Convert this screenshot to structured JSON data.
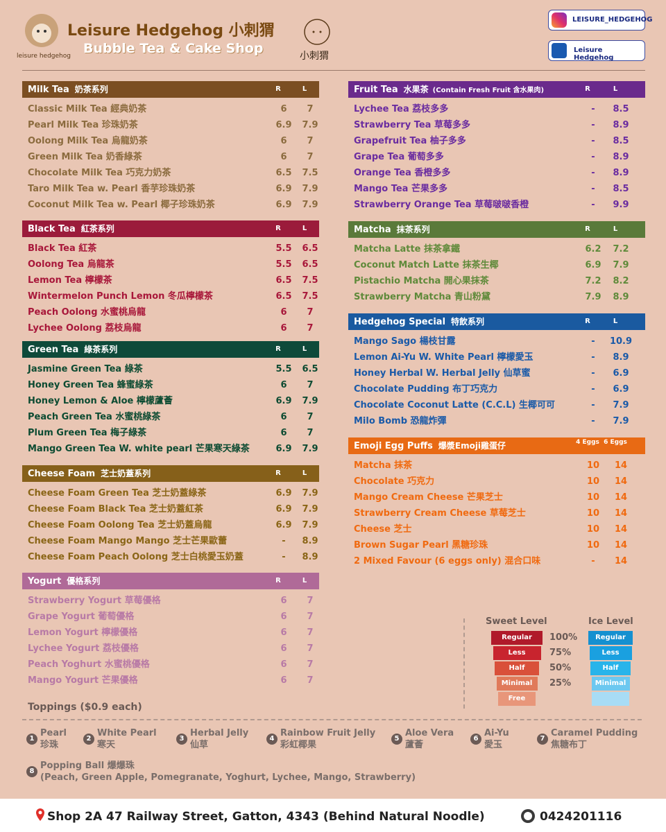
{
  "header": {
    "brand": "Leisure Hedgehog",
    "brand_cn": "小刺猬",
    "subtitle": "Bubble Tea & Cake Shop",
    "logo_caption": "leisure hedgehog",
    "logo_cn": "小刺猬",
    "instagram": "LEISURE_HEDGEHOG",
    "facebook": "Leisure Hedgehog"
  },
  "left_sections": [
    {
      "title": "Milk Tea",
      "title_cn": "奶茶系列",
      "col_r": "R",
      "col_l": "L",
      "header_color": "#7b4e22",
      "text_color": "#8b6b3e",
      "items": [
        {
          "name": "Classic Milk Tea 經典奶茶",
          "r": "6",
          "l": "7"
        },
        {
          "name": "Pearl Milk Tea 珍珠奶茶",
          "r": "6.9",
          "l": "7.9"
        },
        {
          "name": "Oolong Milk Tea 烏龍奶茶",
          "r": "6",
          "l": "7"
        },
        {
          "name": "Green Milk Tea 奶香綠茶",
          "r": "6",
          "l": "7"
        },
        {
          "name": "Chocolate Milk Tea 巧克力奶茶",
          "r": "6.5",
          "l": "7.5"
        },
        {
          "name": "Taro Milk Tea w. Pearl 香芋珍珠奶茶",
          "r": "6.9",
          "l": "7.9"
        },
        {
          "name": "Coconut Milk Tea w. Pearl 椰子珍珠奶茶",
          "r": "6.9",
          "l": "7.9"
        }
      ]
    },
    {
      "title": "Black Tea",
      "title_cn": "紅茶系列",
      "col_r": "R",
      "col_l": "L",
      "header_color": "#9b1b3b",
      "text_color": "#a8173a",
      "items": [
        {
          "name": "Black Tea 紅茶",
          "r": "5.5",
          "l": "6.5"
        },
        {
          "name": "Oolong Tea 烏龍茶",
          "r": "5.5",
          "l": "6.5"
        },
        {
          "name": "Lemon Tea 檸檬茶",
          "r": "6.5",
          "l": "7.5"
        },
        {
          "name": "Wintermelon Punch Lemon 冬瓜檸檬茶",
          "r": "6.5",
          "l": "7.5"
        },
        {
          "name": "Peach Oolong 水蜜桃烏龍",
          "r": "6",
          "l": "7"
        },
        {
          "name": "Lychee Oolong 荔枝烏龍",
          "r": "6",
          "l": "7"
        }
      ]
    },
    {
      "title": "Green Tea",
      "title_cn": "綠茶系列",
      "col_r": "R",
      "col_l": "L",
      "header_color": "#0e4a3a",
      "text_color": "#0d4b32",
      "items": [
        {
          "name": "Jasmine Green Tea 綠茶",
          "r": "5.5",
          "l": "6.5"
        },
        {
          "name": "Honey Green Tea 蜂蜜綠茶",
          "r": "6",
          "l": "7"
        },
        {
          "name": "Honey Lemon & Aloe 檸檬蘆薈",
          "r": "6.9",
          "l": "7.9"
        },
        {
          "name": "Peach Green Tea 水蜜桃綠茶",
          "r": "6",
          "l": "7"
        },
        {
          "name": "Plum Green Tea 梅子綠茶",
          "r": "6",
          "l": "7"
        },
        {
          "name": "Mango Green Tea W. white pearl 芒果寒天綠茶",
          "r": "6.9",
          "l": "7.9"
        }
      ]
    },
    {
      "title": "Cheese Foam",
      "title_cn": "芝士奶蓋系列",
      "col_r": "R",
      "col_l": "L",
      "header_color": "#86601a",
      "text_color": "#8a6516",
      "items": [
        {
          "name": "Cheese Foam Green Tea 芝士奶蓋綠茶",
          "r": "6.9",
          "l": "7.9"
        },
        {
          "name": "Cheese Foam Black Tea 芝士奶蓋紅茶",
          "r": "6.9",
          "l": "7.9"
        },
        {
          "name": "Cheese Foam Oolong Tea 芝士奶蓋烏龍",
          "r": "6.9",
          "l": "7.9"
        },
        {
          "name": "Cheese Foam Mango Mango 芝士芒果歐蕾",
          "r": "-",
          "l": "8.9"
        },
        {
          "name": "Cheese Foam Peach Oolong 芝士白桃愛玉奶蓋",
          "r": "-",
          "l": "8.9"
        }
      ]
    },
    {
      "title": "Yogurt",
      "title_cn": "優格系列",
      "col_r": "R",
      "col_l": "L",
      "header_color": "#b06a98",
      "text_color": "#b87aa6",
      "items": [
        {
          "name": "Strawberry Yogurt 草莓優格",
          "r": "6",
          "l": "7"
        },
        {
          "name": "Grape Yogurt 葡萄優格",
          "r": "6",
          "l": "7"
        },
        {
          "name": "Lemon Yogurt 檸檬優格",
          "r": "6",
          "l": "7"
        },
        {
          "name": "Lychee Yogurt 荔枝優格",
          "r": "6",
          "l": "7"
        },
        {
          "name": "Peach Yoghurt 水蜜桃優格",
          "r": "6",
          "l": "7"
        },
        {
          "name": "Mango Yogurt 芒果優格",
          "r": "6",
          "l": "7"
        }
      ]
    }
  ],
  "right_sections": [
    {
      "title": "Fruit Tea",
      "title_cn": "水果茶",
      "note": "(Contain Fresh Fruit 含水果肉)",
      "col_r": "R",
      "col_l": "L",
      "header_color": "#6a2a8c",
      "text_color": "#6a2ca0",
      "items": [
        {
          "name": "Lychee Tea 荔枝多多",
          "r": "-",
          "l": "8.5"
        },
        {
          "name": "Strawberry Tea 草莓多多",
          "r": "-",
          "l": "8.9"
        },
        {
          "name": "Grapefruit Tea 柚子多多",
          "r": "-",
          "l": "8.5"
        },
        {
          "name": "Grape Tea 葡萄多多",
          "r": "-",
          "l": "8.9"
        },
        {
          "name": "Orange Tea 香橙多多",
          "r": "-",
          "l": "8.9"
        },
        {
          "name": "Mango Tea 芒果多多",
          "r": "-",
          "l": "8.5"
        },
        {
          "name": "Strawberry Orange Tea 草莓啵啵香橙",
          "r": "-",
          "l": "9.9"
        }
      ]
    },
    {
      "title": "Matcha",
      "title_cn": "抹茶系列",
      "col_r": "R",
      "col_l": "L",
      "header_color": "#5a7a3a",
      "text_color": "#5f8a3a",
      "items": [
        {
          "name": "Matcha Latte 抹茶拿鐵",
          "r": "6.2",
          "l": "7.2"
        },
        {
          "name": "Coconut Match Latte 抹茶生椰",
          "r": "6.9",
          "l": "7.9"
        },
        {
          "name": "Pistachio Matcha 開心果抹茶",
          "r": "7.2",
          "l": "8.2"
        },
        {
          "name": "Strawberry Matcha 青山粉黛",
          "r": "7.9",
          "l": "8.9"
        }
      ]
    },
    {
      "title": "Hedgehog Special",
      "title_cn": "特飲系列",
      "col_r": "R",
      "col_l": "L",
      "header_color": "#1a5aa0",
      "text_color": "#1a5aa8",
      "items": [
        {
          "name": "Mango Sago 楊枝甘露",
          "r": "-",
          "l": "10.9"
        },
        {
          "name": "Lemon Ai-Yu W. White Pearl 檸檬愛玉",
          "r": "-",
          "l": "8.9"
        },
        {
          "name": "Honey Herbal W. Herbal Jelly 仙草蜜",
          "r": "-",
          "l": "6.9"
        },
        {
          "name": "Chocolate Pudding 布丁巧克力",
          "r": "-",
          "l": "6.9"
        },
        {
          "name": "Chocolate Coconut Latte (C.C.L) 生椰可可",
          "r": "-",
          "l": "7.9"
        },
        {
          "name": "Milo Bomb 恐龍炸彈",
          "r": "-",
          "l": "7.9"
        }
      ]
    },
    {
      "title": "Emoji Egg Puffs",
      "title_cn": "爆漿Emoji雞蛋仔",
      "col_r": "4 Eggs",
      "col_l": "6 Eggs",
      "header_color": "#e86a14",
      "text_color": "#f06a10",
      "items": [
        {
          "name": "Matcha 抹茶",
          "r": "10",
          "l": "14"
        },
        {
          "name": "Chocolate 巧克力",
          "r": "10",
          "l": "14"
        },
        {
          "name": "Mango Cream Cheese 芒果芝士",
          "r": "10",
          "l": "14"
        },
        {
          "name": "Strawberry Cream Cheese 草莓芝士",
          "r": "10",
          "l": "14"
        },
        {
          "name": "Cheese 芝士",
          "r": "10",
          "l": "14"
        },
        {
          "name": "Brown Sugar Pearl 黑糖珍珠",
          "r": "10",
          "l": "14"
        },
        {
          "name": "2 Mixed Favour (6 eggs only) 混合口味",
          "r": "-",
          "l": "14"
        }
      ]
    }
  ],
  "levels": {
    "sweet_title": "Sweet Level",
    "sweet": [
      "Regular",
      "Less",
      "Half",
      "Minimal",
      "Free"
    ],
    "percents": [
      "100%",
      "75%",
      "50%",
      "25%"
    ],
    "ice_title": "Ice Level",
    "ice": [
      "Regular",
      "Less",
      "Half",
      "Minimal"
    ]
  },
  "toppings": {
    "title": "Toppings ($0.9 each)",
    "items": [
      {
        "num": "1",
        "name": "Pearl",
        "cn": "珍珠"
      },
      {
        "num": "2",
        "name": "White Pearl",
        "cn": "寒天"
      },
      {
        "num": "3",
        "name": "Herbal Jelly",
        "cn": "仙草"
      },
      {
        "num": "4",
        "name": "Rainbow Fruit Jelly",
        "cn": "彩虹椰果"
      },
      {
        "num": "5",
        "name": "Aloe Vera",
        "cn": "蘆薈"
      },
      {
        "num": "6",
        "name": "Ai-Yu",
        "cn": "愛玉"
      },
      {
        "num": "7",
        "name": "Caramel Pudding",
        "cn": "焦糖布丁"
      },
      {
        "num": "8",
        "name": "Popping Ball 爆爆珠",
        "cn": "(Peach, Green Apple, Pomegranate, Yoghurt, Lychee, Mango, Strawberry)"
      }
    ]
  },
  "footer": {
    "address": "Shop 2A 47 Railway Street, Gatton, 4343 (Behind Natural Noodle)",
    "phone": "0424201116"
  }
}
